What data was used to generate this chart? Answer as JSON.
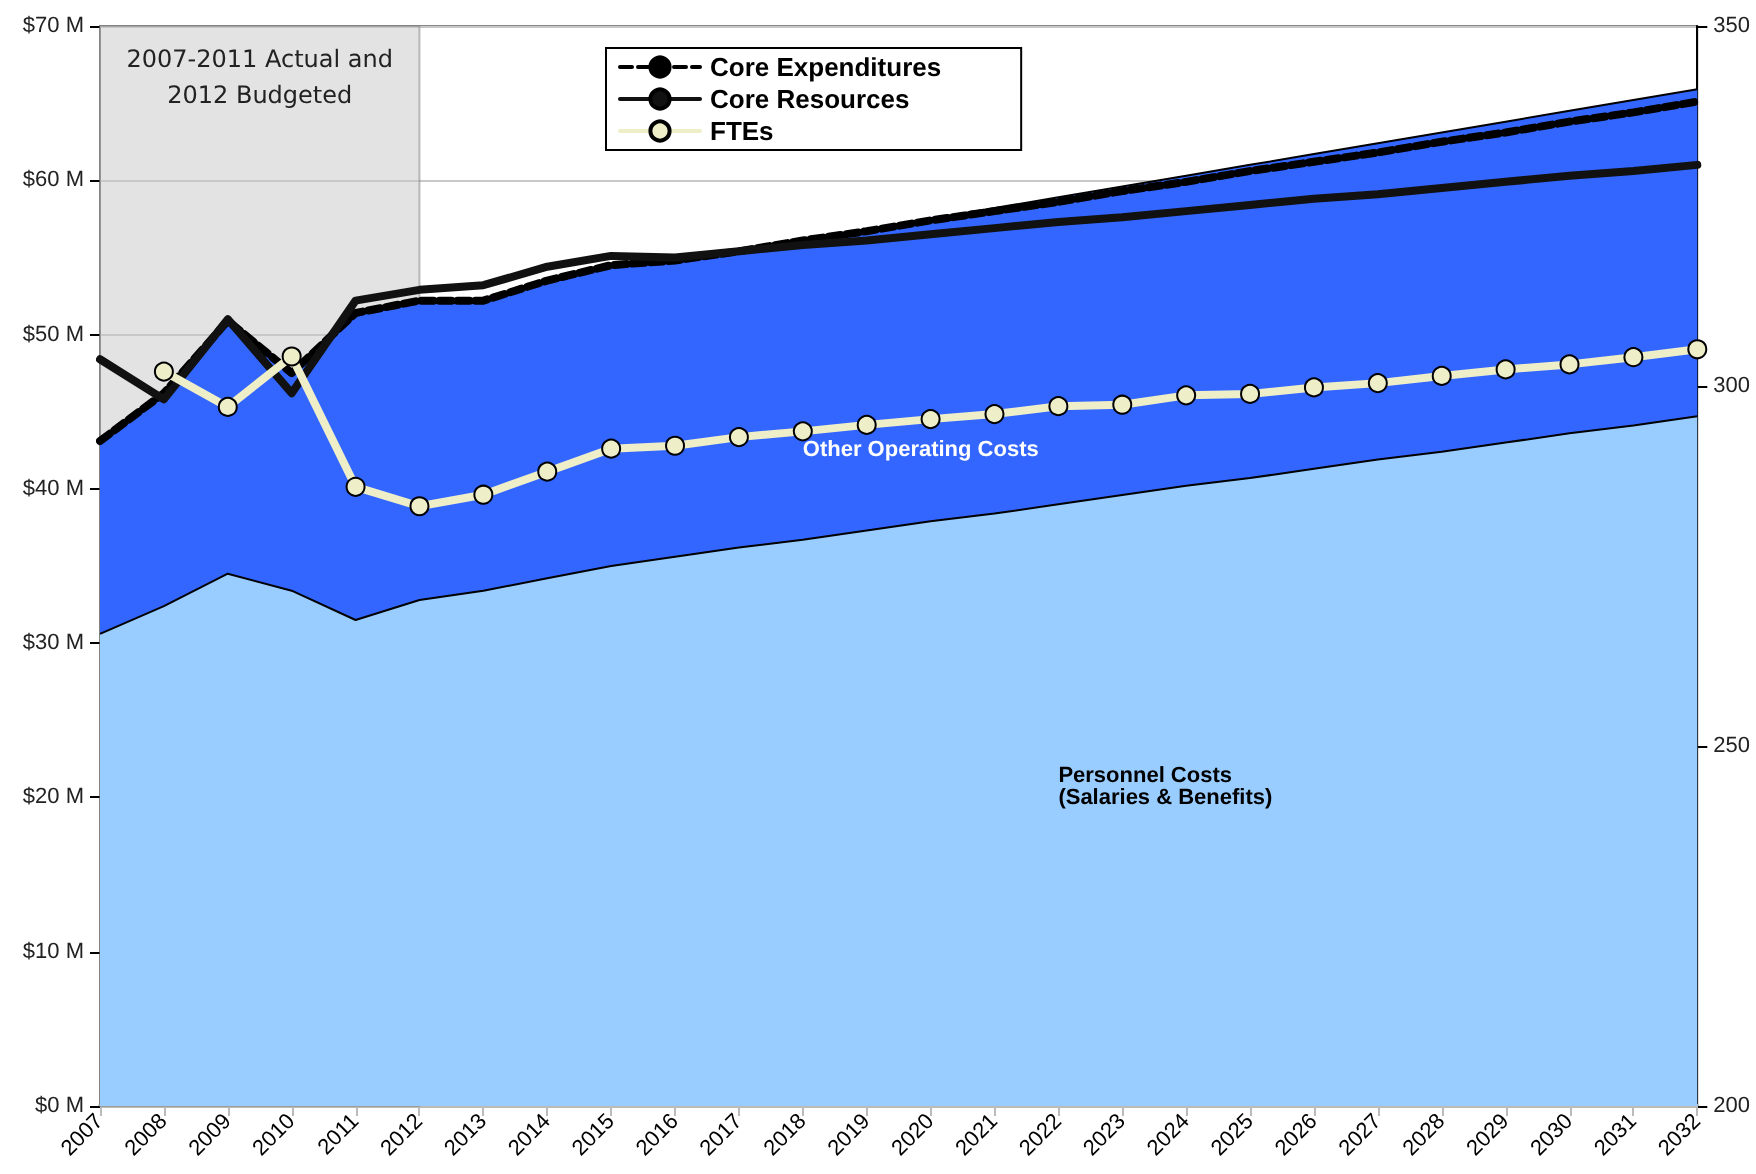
{
  "chart_data": {
    "type": "area",
    "stacked": true,
    "grid": "y",
    "legend": "top",
    "marker": "none",
    "categories": [
      "2007",
      "2008",
      "2009",
      "2010",
      "2011",
      "2012",
      "2013",
      "2014",
      "2015",
      "2016",
      "2017",
      "2018",
      "2019",
      "2020",
      "2021",
      "2022",
      "2023",
      "2024",
      "2025",
      "2026",
      "2027",
      "2028",
      "2029",
      "2030",
      "2031",
      "2032"
    ],
    "series": [
      {
        "name": "Personnel Costs\n(Salaries & Benefits)",
        "color": "#99ccff",
        "values": [
          30.6,
          32.4,
          34.5,
          33.4,
          31.5,
          32.8,
          33.4,
          34.2,
          35.0,
          35.6,
          36.2,
          36.7,
          37.3,
          37.9,
          38.4,
          39.0,
          39.6,
          40.2,
          40.7,
          41.3,
          41.9,
          42.4,
          43.0,
          43.6,
          44.1,
          44.7
        ]
      },
      {
        "name": "Other Operating Costs",
        "color": "#3366ff",
        "values": [
          12.5,
          13.8,
          16.4,
          14.1,
          19.9,
          19.4,
          18.8,
          19.3,
          19.5,
          19.2,
          19.2,
          19.4,
          19.5,
          19.6,
          19.8,
          19.9,
          20.0,
          20.1,
          20.3,
          20.4,
          20.5,
          20.7,
          20.8,
          20.9,
          21.1,
          21.2
        ]
      },
      {
        "name": "Core Expenditures",
        "type": "line",
        "color": "#000000",
        "line_style": "dashed",
        "values": [
          43.1,
          46.2,
          50.9,
          47.5,
          51.4,
          52.2,
          52.2,
          53.5,
          54.5,
          54.8,
          55.4,
          56.1,
          56.7,
          57.4,
          58.0,
          58.6,
          59.3,
          59.9,
          60.6,
          61.2,
          61.8,
          62.5,
          63.1,
          63.8,
          64.4,
          65.1
        ]
      },
      {
        "name": "Core Resources",
        "type": "line",
        "color": "#111111",
        "line_style": "solid",
        "values": [
          48.4,
          45.8,
          51.0,
          46.2,
          52.2,
          52.9,
          53.2,
          54.4,
          55.1,
          55.0,
          55.4,
          55.8,
          56.1,
          56.5,
          56.9,
          57.3,
          57.6,
          58.0,
          58.4,
          58.8,
          59.1,
          59.5,
          59.9,
          60.3,
          60.6,
          61.0
        ]
      },
      {
        "name": "FTEs",
        "type": "line",
        "axis": "y2",
        "color": "#eeeec8",
        "line_style": "solid",
        "marker": "circle",
        "values": [
          null,
          302.0,
          297.1,
          304.1,
          286.0,
          283.3,
          284.9,
          288.1,
          291.3,
          291.7,
          292.9,
          293.7,
          294.6,
          295.4,
          296.1,
          297.2,
          297.4,
          298.7,
          298.9,
          299.8,
          300.4,
          301.4,
          302.3,
          303.0,
          304.0,
          305.1
        ]
      }
    ],
    "ylim": [
      0,
      70
    ],
    "yticks": [
      {
        "value": 0,
        "label": "$0 M"
      },
      {
        "value": 10,
        "label": "$10 M"
      },
      {
        "value": 20,
        "label": "$20 M"
      },
      {
        "value": 30,
        "label": "$30 M"
      },
      {
        "value": 40,
        "label": "$40 M"
      },
      {
        "value": 50,
        "label": "$50 M"
      },
      {
        "value": 60,
        "label": "$60 M"
      },
      {
        "value": 70,
        "label": "$70 M"
      }
    ],
    "y2lim": [
      200,
      350
    ],
    "y2ticks": [
      200,
      250,
      300,
      350
    ],
    "bands": [
      {
        "axis": "x",
        "from": "2007",
        "to": "2012",
        "label": "2007-2011 Actual and\n2012 Budgeted",
        "color": "#c8c8c8"
      }
    ]
  }
}
